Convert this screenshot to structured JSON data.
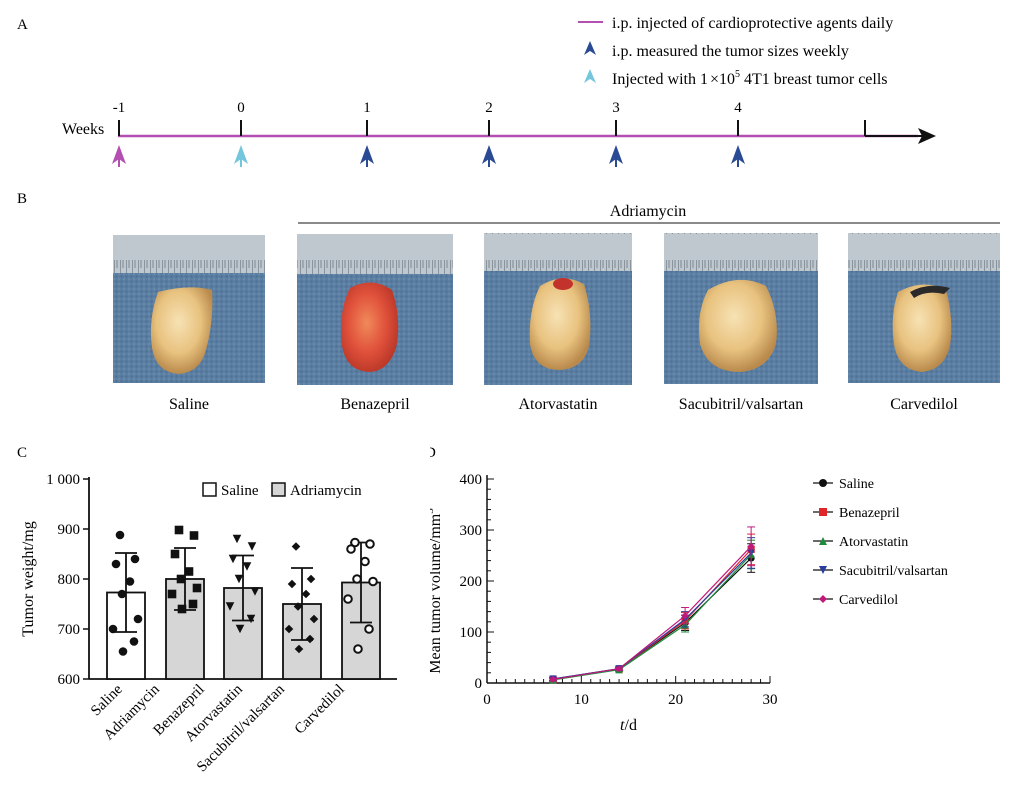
{
  "panels": {
    "a": "A",
    "b": "B",
    "c": "C",
    "d": "D"
  },
  "timeline": {
    "legend": [
      {
        "text": "i.p. injected of cardioprotective agents daily",
        "color": "#b34fb0",
        "icon": "line-swatch"
      },
      {
        "text": "i.p. measured the tumor sizes weekly",
        "color": "#2a4a93",
        "icon": "arrow-up-icon"
      },
      {
        "text_pre": "Injected with 1",
        "times": "×",
        "base": "10",
        "sup": "5",
        "text_post": "4T1 breast tumor cells",
        "color": "#74c6dd",
        "icon": "arrow-up-icon"
      }
    ],
    "axis_label": "Weeks",
    "ticks": [
      "-1",
      "0",
      "1",
      "2",
      "3",
      "4"
    ],
    "line_color": "#b34fb0",
    "arrow_colors": [
      "#b34fb0",
      "#74c6dd",
      "#2a4a93",
      "#2a4a93",
      "#2a4a93",
      "#2a4a93"
    ]
  },
  "photos": {
    "group_label": "Adriamycin",
    "items": [
      "Saline",
      "Benazepril",
      "Atorvastatin",
      "Sacubitril/valsartan",
      "Carvedilol"
    ]
  },
  "chart_data": [
    {
      "type": "bar",
      "ylabel": "Tumor weight/mg",
      "ylim": [
        600,
        1000
      ],
      "yticks": [
        "600",
        "700",
        "800",
        "900",
        "1 000"
      ],
      "categories": [
        "Saline",
        "Benazepril",
        "Atorvastatin",
        "Sacubitril/valsartan",
        "Carvedilol"
      ],
      "x_extra_label": "Adriamycin",
      "legend": [
        "Saline",
        "Adriamycin"
      ],
      "legend_colors": [
        "#ffffff",
        "#d6d6d6"
      ],
      "means": [
        773,
        800,
        782,
        750,
        793
      ],
      "sd": [
        79,
        62,
        65,
        72,
        80
      ],
      "bar_colors": [
        "#ffffff",
        "#d6d6d6",
        "#d6d6d6",
        "#d6d6d6",
        "#d6d6d6"
      ],
      "marker_shapes": [
        "circle",
        "square",
        "triangle-down",
        "diamond",
        "circle-open"
      ],
      "points": [
        [
          888,
          840,
          830,
          795,
          770,
          720,
          700,
          675,
          655
        ],
        [
          898,
          887,
          850,
          815,
          800,
          782,
          770,
          750,
          740
        ],
        [
          880,
          865,
          840,
          825,
          800,
          775,
          745,
          720,
          700
        ],
        [
          865,
          800,
          790,
          770,
          745,
          720,
          700,
          680,
          660
        ],
        [
          873,
          870,
          860,
          835,
          800,
          795,
          760,
          700,
          660
        ]
      ]
    },
    {
      "type": "line",
      "xlabel_italic": "t",
      "xlabel_rest": "/d",
      "ylabel": "Mean tumor volume/mm",
      "ylabel_sup": "3",
      "xlim": [
        0,
        30
      ],
      "ylim": [
        0,
        400
      ],
      "xticks": [
        "0",
        "10",
        "20",
        "30"
      ],
      "yticks": [
        "0",
        "100",
        "200",
        "300",
        "400"
      ],
      "x": [
        7,
        14,
        21,
        28
      ],
      "series": [
        {
          "name": "Saline",
          "color": "#111111",
          "marker": "circle",
          "values": [
            8,
            28,
            118,
            245
          ],
          "err": [
            3,
            3,
            15,
            28
          ]
        },
        {
          "name": "Benazepril",
          "color": "#e0252b",
          "marker": "square",
          "values": [
            7,
            27,
            122,
            262
          ],
          "err": [
            3,
            3,
            16,
            30
          ]
        },
        {
          "name": "Atorvastatin",
          "color": "#1f8a3c",
          "marker": "triangle",
          "values": [
            6,
            26,
            114,
            252
          ],
          "err": [
            3,
            3,
            14,
            28
          ]
        },
        {
          "name": "Sacubitril/valsartan",
          "color": "#2a3d9e",
          "marker": "triangle-down",
          "values": [
            8,
            28,
            125,
            255
          ],
          "err": [
            3,
            3,
            15,
            30
          ]
        },
        {
          "name": "Carvedilol",
          "color": "#c0187c",
          "marker": "diamond",
          "values": [
            7,
            28,
            132,
            268
          ],
          "err": [
            3,
            3,
            16,
            38
          ]
        }
      ]
    }
  ]
}
